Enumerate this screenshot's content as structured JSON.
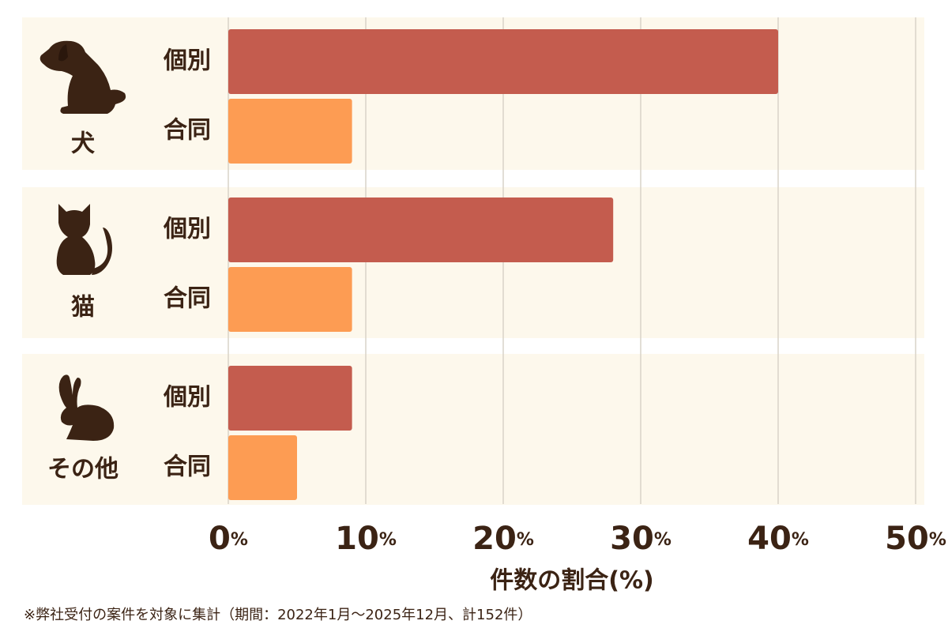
{
  "chart_data": {
    "type": "bar",
    "orientation": "horizontal",
    "categories": [
      "犬",
      "猫",
      "その他"
    ],
    "series": [
      {
        "name": "個別",
        "color": "#c45c4e",
        "values": [
          40,
          28,
          9
        ]
      },
      {
        "name": "合同",
        "color": "#fd9c53",
        "values": [
          9,
          9,
          5
        ]
      }
    ],
    "xlabel": "件数の割合(%)",
    "xlim": [
      0,
      50
    ],
    "xticks": [
      {
        "value": 0,
        "label": "0%"
      },
      {
        "value": 10,
        "label": "10%"
      },
      {
        "value": 20,
        "label": "20%"
      },
      {
        "value": 30,
        "label": "30%"
      },
      {
        "value": 40,
        "label": "40%"
      },
      {
        "value": 50,
        "label": "50%"
      }
    ],
    "grid": true,
    "footnote": "※弊社受付の案件を対象に集計（期間：2022年1月〜2025年12月、計152件）"
  }
}
